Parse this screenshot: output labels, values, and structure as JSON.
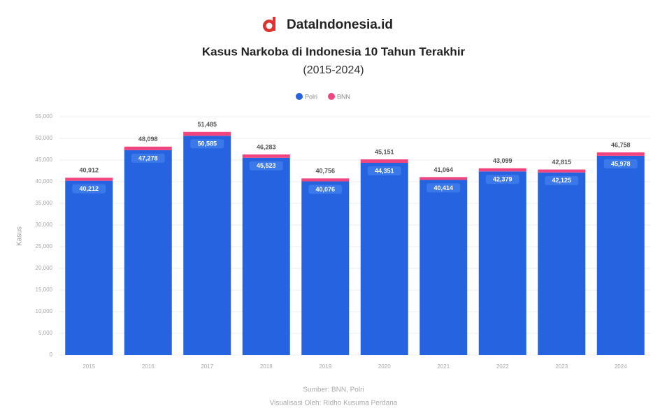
{
  "brand": "DataIndonesia.id",
  "chart_data": {
    "type": "stacked_bar",
    "title": "Kasus Narkoba di Indonesia 10 Tahun Terakhir",
    "subtitle": "(2015-2024)",
    "y_label": "Kasus",
    "categories": [
      "2015",
      "2016",
      "2017",
      "2018",
      "2019",
      "2020",
      "2021",
      "2022",
      "2023",
      "2024"
    ],
    "series": [
      {
        "name": "Polri",
        "color": "#2563e0",
        "values": [
          40212,
          47278,
          50585,
          45523,
          40076,
          44351,
          40414,
          42379,
          42125,
          45978
        ],
        "value_labels": [
          "40,212",
          "47,278",
          "50,585",
          "45,523",
          "40,076",
          "44,351",
          "40,414",
          "42,379",
          "42,125",
          "45,978"
        ]
      },
      {
        "name": "BNN",
        "color": "#f0457f",
        "values": [
          700,
          820,
          900,
          760,
          680,
          800,
          650,
          720,
          690,
          780
        ]
      }
    ],
    "total_labels": [
      "40,912",
      "48,098",
      "51,485",
      "46,283",
      "40,756",
      "45,151",
      "41,064",
      "43,099",
      "42,815",
      "46,758"
    ],
    "ylim": [
      0,
      55000
    ],
    "yticks": [
      0,
      {
        "value": 5000,
        "label": "5,000"
      },
      {
        "value": 10000,
        "label": "10,000"
      },
      {
        "value": 15000,
        "label": "15,000"
      },
      {
        "value": 20000,
        "label": "20,000"
      },
      {
        "value": 25000,
        "label": "25,000"
      },
      {
        "value": 30000,
        "label": "30,000"
      },
      {
        "value": 35000,
        "label": "35,000"
      },
      {
        "value": 40000,
        "label": "40,000"
      },
      {
        "value": 45000,
        "label": "45,000"
      },
      {
        "value": 50000,
        "label": "50,000"
      },
      {
        "value": 55000,
        "label": "55,000"
      }
    ],
    "grid": true,
    "legend": "top",
    "source": "Sumber: BNN, Polri",
    "credit": "Visualisasi Oleh: Ridho Kusuma Perdana"
  }
}
